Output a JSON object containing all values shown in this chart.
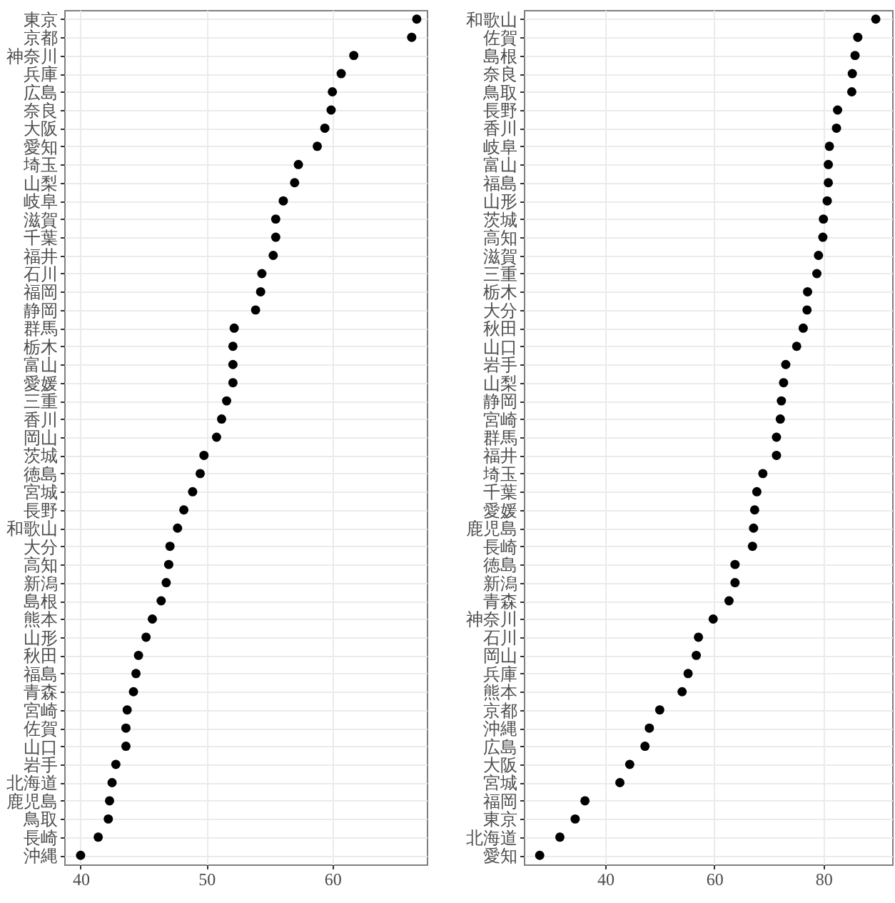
{
  "chart_data": [
    {
      "type": "scatter",
      "orientation": "horizontal",
      "categories": [
        "東京",
        "京都",
        "神奈川",
        "兵庫",
        "広島",
        "奈良",
        "大阪",
        "愛知",
        "埼玉",
        "山梨",
        "岐阜",
        "滋賀",
        "千葉",
        "福井",
        "石川",
        "福岡",
        "静岡",
        "群馬",
        "栃木",
        "富山",
        "愛媛",
        "三重",
        "香川",
        "岡山",
        "茨城",
        "徳島",
        "宮城",
        "長野",
        "和歌山",
        "大分",
        "高知",
        "新潟",
        "島根",
        "熊本",
        "山形",
        "秋田",
        "福島",
        "青森",
        "宮崎",
        "佐賀",
        "山口",
        "岩手",
        "北海道",
        "鹿児島",
        "鳥取",
        "長崎",
        "沖縄"
      ],
      "values": [
        66.7,
        66.3,
        61.7,
        60.7,
        60.0,
        59.9,
        59.4,
        58.8,
        57.3,
        57.0,
        56.1,
        55.5,
        55.5,
        55.3,
        54.4,
        54.3,
        53.9,
        52.2,
        52.1,
        52.1,
        52.1,
        51.6,
        51.2,
        50.8,
        49.8,
        49.5,
        48.9,
        48.2,
        47.7,
        47.1,
        47.0,
        46.8,
        46.4,
        45.7,
        45.2,
        44.6,
        44.4,
        44.2,
        43.7,
        43.6,
        43.6,
        42.8,
        42.5,
        42.3,
        42.2,
        41.4,
        40.0
      ],
      "color": "#000000",
      "marker": "circle",
      "grid": true,
      "xlim": [
        38.7,
        67.5
      ],
      "xticks": [
        40,
        50,
        60
      ]
    },
    {
      "type": "scatter",
      "orientation": "horizontal",
      "categories": [
        "和歌山",
        "佐賀",
        "島根",
        "奈良",
        "鳥取",
        "長野",
        "香川",
        "岐阜",
        "富山",
        "福島",
        "山形",
        "茨城",
        "高知",
        "滋賀",
        "三重",
        "栃木",
        "大分",
        "秋田",
        "山口",
        "岩手",
        "山梨",
        "静岡",
        "宮崎",
        "群馬",
        "福井",
        "埼玉",
        "千葉",
        "愛媛",
        "鹿児島",
        "長崎",
        "徳島",
        "新潟",
        "青森",
        "神奈川",
        "石川",
        "岡山",
        "兵庫",
        "熊本",
        "京都",
        "沖縄",
        "広島",
        "大阪",
        "宮城",
        "福岡",
        "東京",
        "北海道",
        "愛知"
      ],
      "values": [
        89.6,
        86.3,
        85.8,
        85.3,
        85.2,
        82.6,
        82.4,
        81.1,
        80.9,
        80.9,
        80.7,
        80.0,
        79.9,
        79.1,
        78.8,
        77.1,
        77.0,
        76.3,
        75.1,
        73.1,
        72.7,
        72.3,
        72.1,
        71.4,
        71.4,
        68.9,
        67.8,
        67.4,
        67.2,
        67.0,
        63.8,
        63.8,
        62.7,
        59.8,
        57.1,
        56.7,
        55.2,
        54.1,
        50.0,
        48.1,
        47.3,
        44.5,
        42.7,
        36.3,
        34.5,
        31.7,
        28.0
      ],
      "color": "#000000",
      "marker": "circle",
      "grid": true,
      "xlim": [
        25.1,
        92.6
      ],
      "xticks": [
        40,
        60,
        80
      ]
    }
  ]
}
